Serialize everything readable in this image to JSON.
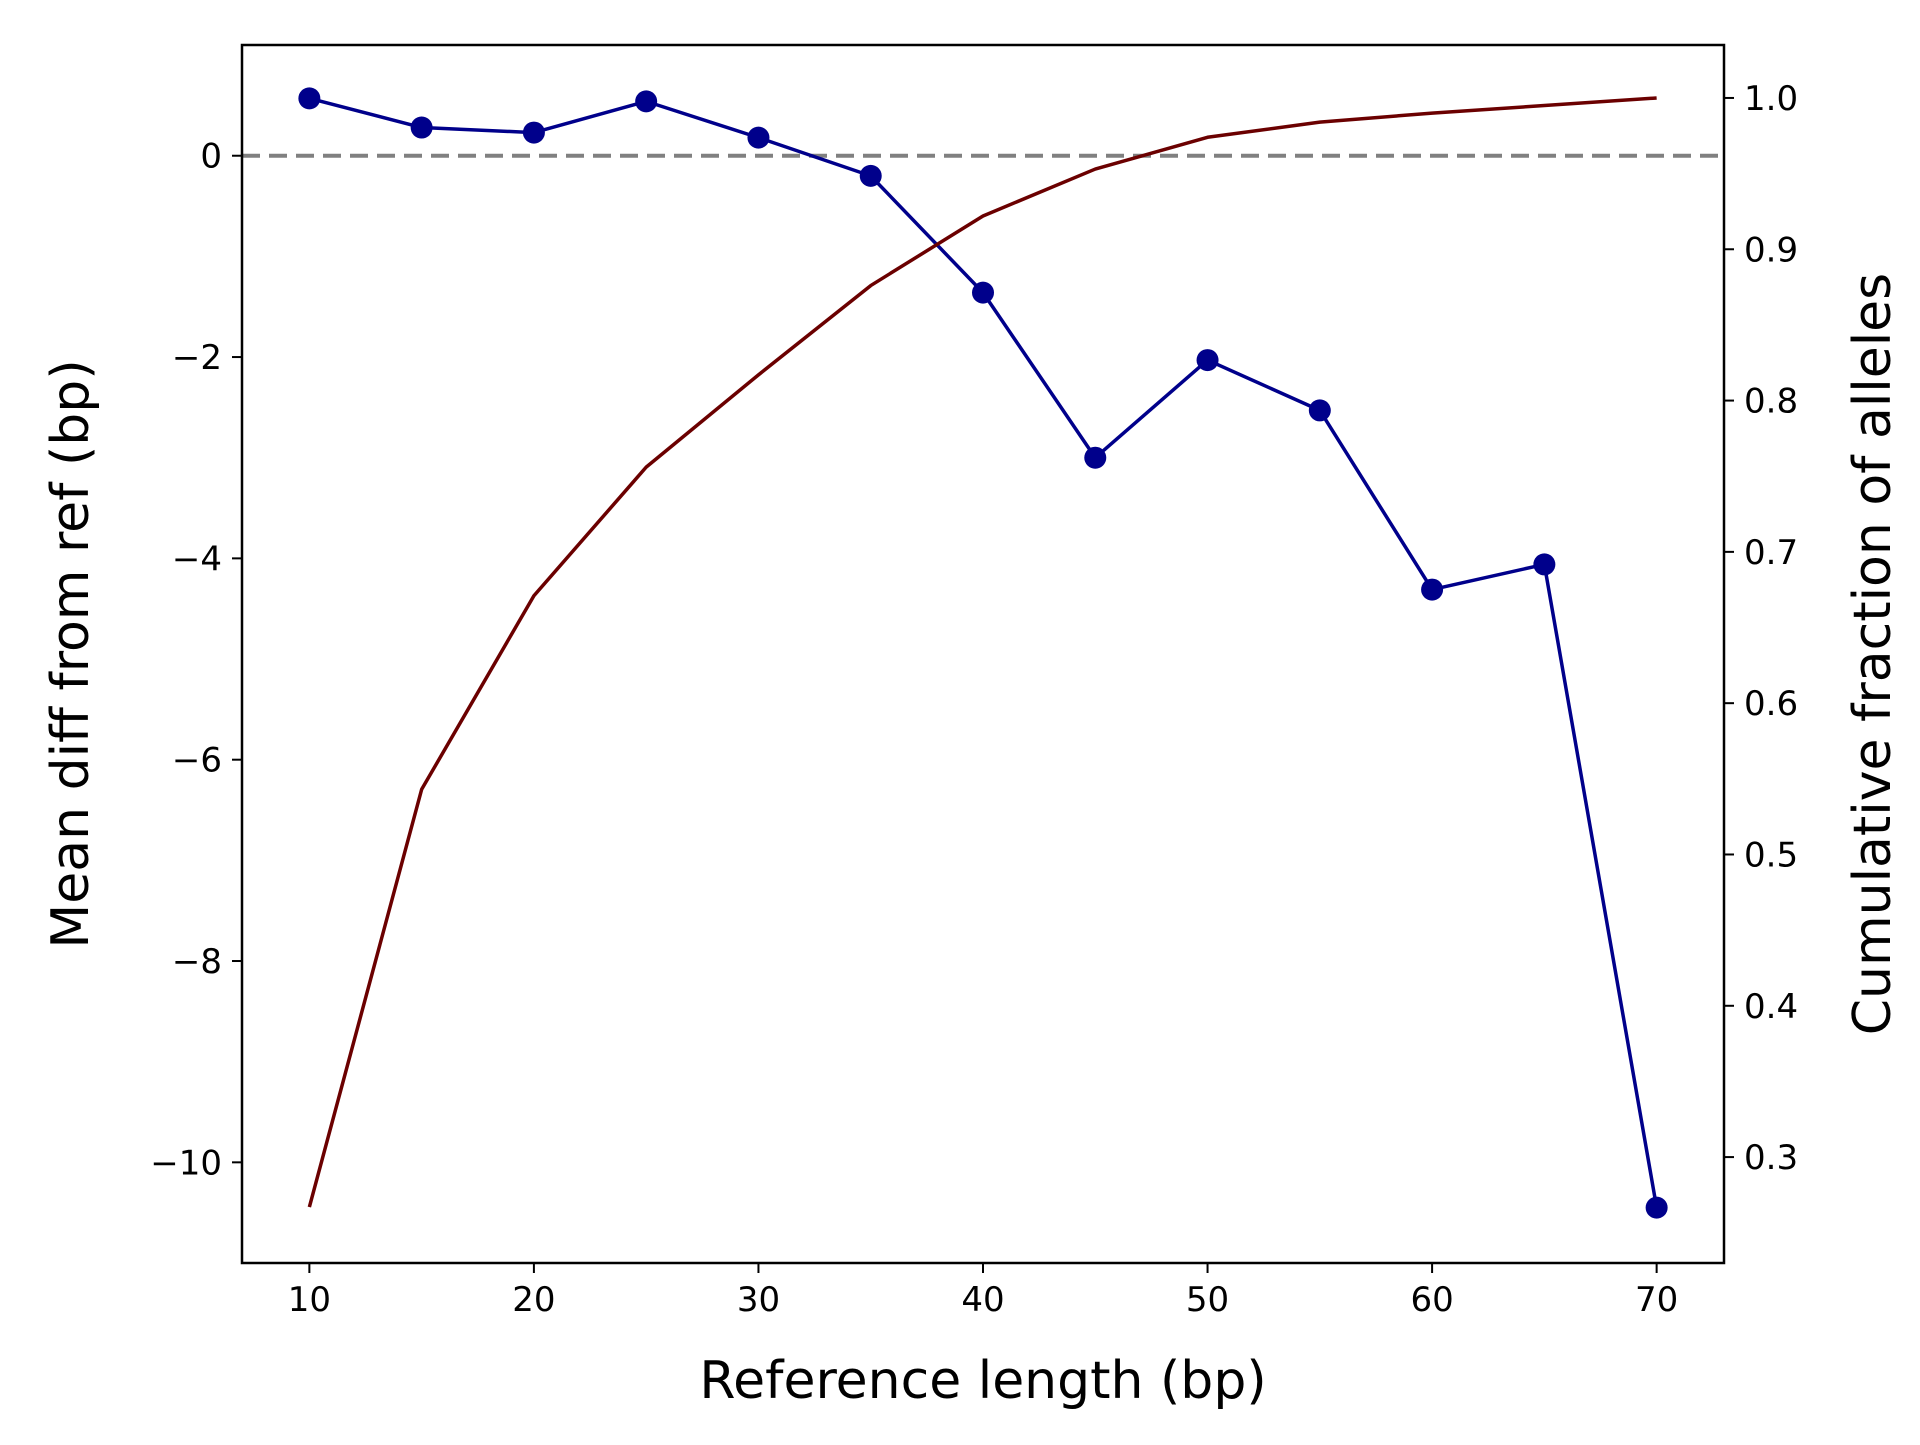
{
  "chart_data": {
    "type": "line",
    "title": "",
    "xlabel": "Reference length (bp)",
    "ylabel": "Mean diff from ref (bp)",
    "y2label": "Cumulative fraction of alleles",
    "xlim": [
      7,
      73
    ],
    "ylim": [
      -11.0,
      1.1
    ],
    "y2lim": [
      0.23,
      1.035
    ],
    "xticks": [
      10,
      20,
      30,
      40,
      50,
      60,
      70
    ],
    "yticks": [
      0,
      -2,
      -4,
      -6,
      -8,
      -10
    ],
    "y2ticks": [
      1.0,
      0.9,
      0.8,
      0.7,
      0.6,
      0.5,
      0.4,
      0.3
    ],
    "reference_line": {
      "axis": "y",
      "value": 0,
      "style": "dashed",
      "color": "#808080"
    },
    "grid": false,
    "legend": "none",
    "series": [
      {
        "axis": "left",
        "color": "#00008b",
        "marker": "circle",
        "x": [
          10,
          15,
          20,
          25,
          30,
          35,
          40,
          45,
          50,
          55,
          60,
          65,
          70
        ],
        "y": [
          0.57,
          0.28,
          0.23,
          0.54,
          0.18,
          -0.2,
          -1.36,
          -3.0,
          -2.03,
          -2.53,
          -4.31,
          -4.06,
          -10.45
        ]
      },
      {
        "axis": "right",
        "color": "#6b0000",
        "marker": "none",
        "x": [
          10,
          15,
          20,
          25,
          30,
          35,
          40,
          45,
          50,
          55,
          60,
          65,
          70
        ],
        "y": [
          0.267,
          0.543,
          0.671,
          0.756,
          0.817,
          0.876,
          0.922,
          0.953,
          0.974,
          0.984,
          0.99,
          0.995,
          1.0
        ]
      }
    ]
  }
}
